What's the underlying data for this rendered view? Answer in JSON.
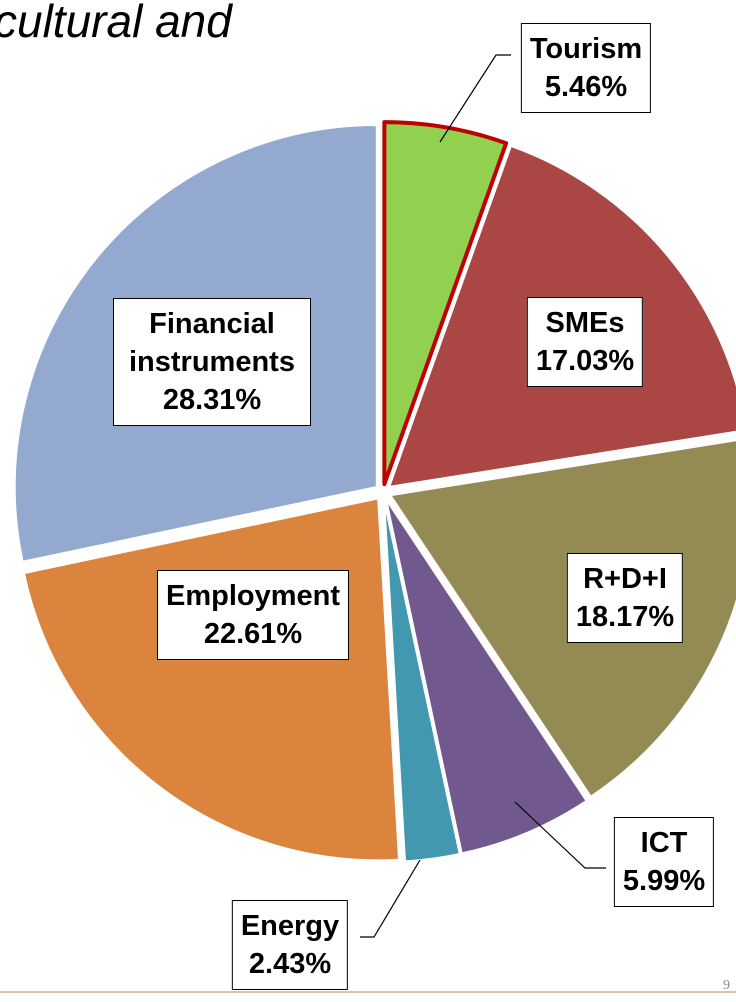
{
  "chart_data": {
    "type": "pie",
    "title": "cultural and",
    "categories": [
      "Tourism",
      "SMEs",
      "R+D+I",
      "ICT",
      "Energy",
      "Employment",
      "Financial instruments"
    ],
    "values": [
      5.46,
      17.03,
      18.17,
      5.99,
      2.43,
      22.61,
      28.31
    ],
    "value_labels": [
      "5.46%",
      "17.03%",
      "18.17%",
      "5.99%",
      "2.43%",
      "22.61%",
      "28.31%"
    ],
    "colors": [
      "#92d050",
      "#aa4643",
      "#948a54",
      "#71588f",
      "#4198af",
      "#db843d",
      "#93a9cf"
    ],
    "edge_colors": [
      "#c00000",
      "#ffffff",
      "#ffffff",
      "#ffffff",
      "#ffffff",
      "#ffffff",
      "#ffffff"
    ]
  },
  "page_number": "9"
}
